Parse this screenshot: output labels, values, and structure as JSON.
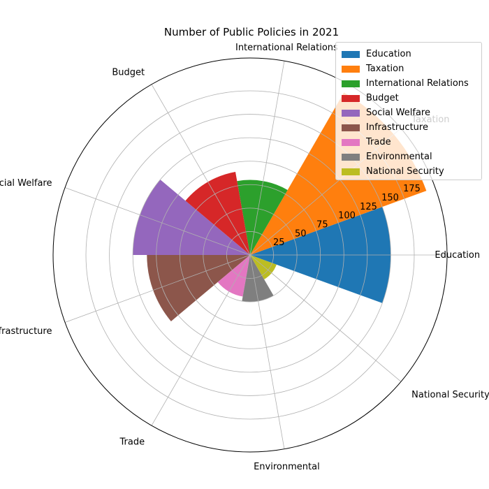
{
  "chart_data": {
    "type": "polar-bar",
    "title": "Number of Public Policies in 2021",
    "categories": [
      "Education",
      "Taxation",
      "International Relations",
      "Budget",
      "Social Welfare",
      "Infrastructure",
      "Trade",
      "Environmental",
      "National Security"
    ],
    "values": [
      150,
      200,
      80,
      90,
      125,
      110,
      45,
      50,
      30
    ],
    "colors": [
      "#1f77b4",
      "#ff7f0e",
      "#2ca02c",
      "#d62728",
      "#9467bd",
      "#8c564b",
      "#e377c2",
      "#7f7f7f",
      "#bcbd22"
    ],
    "angle_labels": [
      "Education",
      "Taxation",
      "International Relations",
      "Budget",
      "Social Welfare",
      "Infrastructure",
      "Trade",
      "Environmental",
      "National Security"
    ],
    "radial_ticks": [
      25,
      50,
      75,
      100,
      125,
      150,
      175
    ],
    "rlim": [
      0,
      210
    ],
    "grid": true,
    "legend_position": "top-right"
  }
}
